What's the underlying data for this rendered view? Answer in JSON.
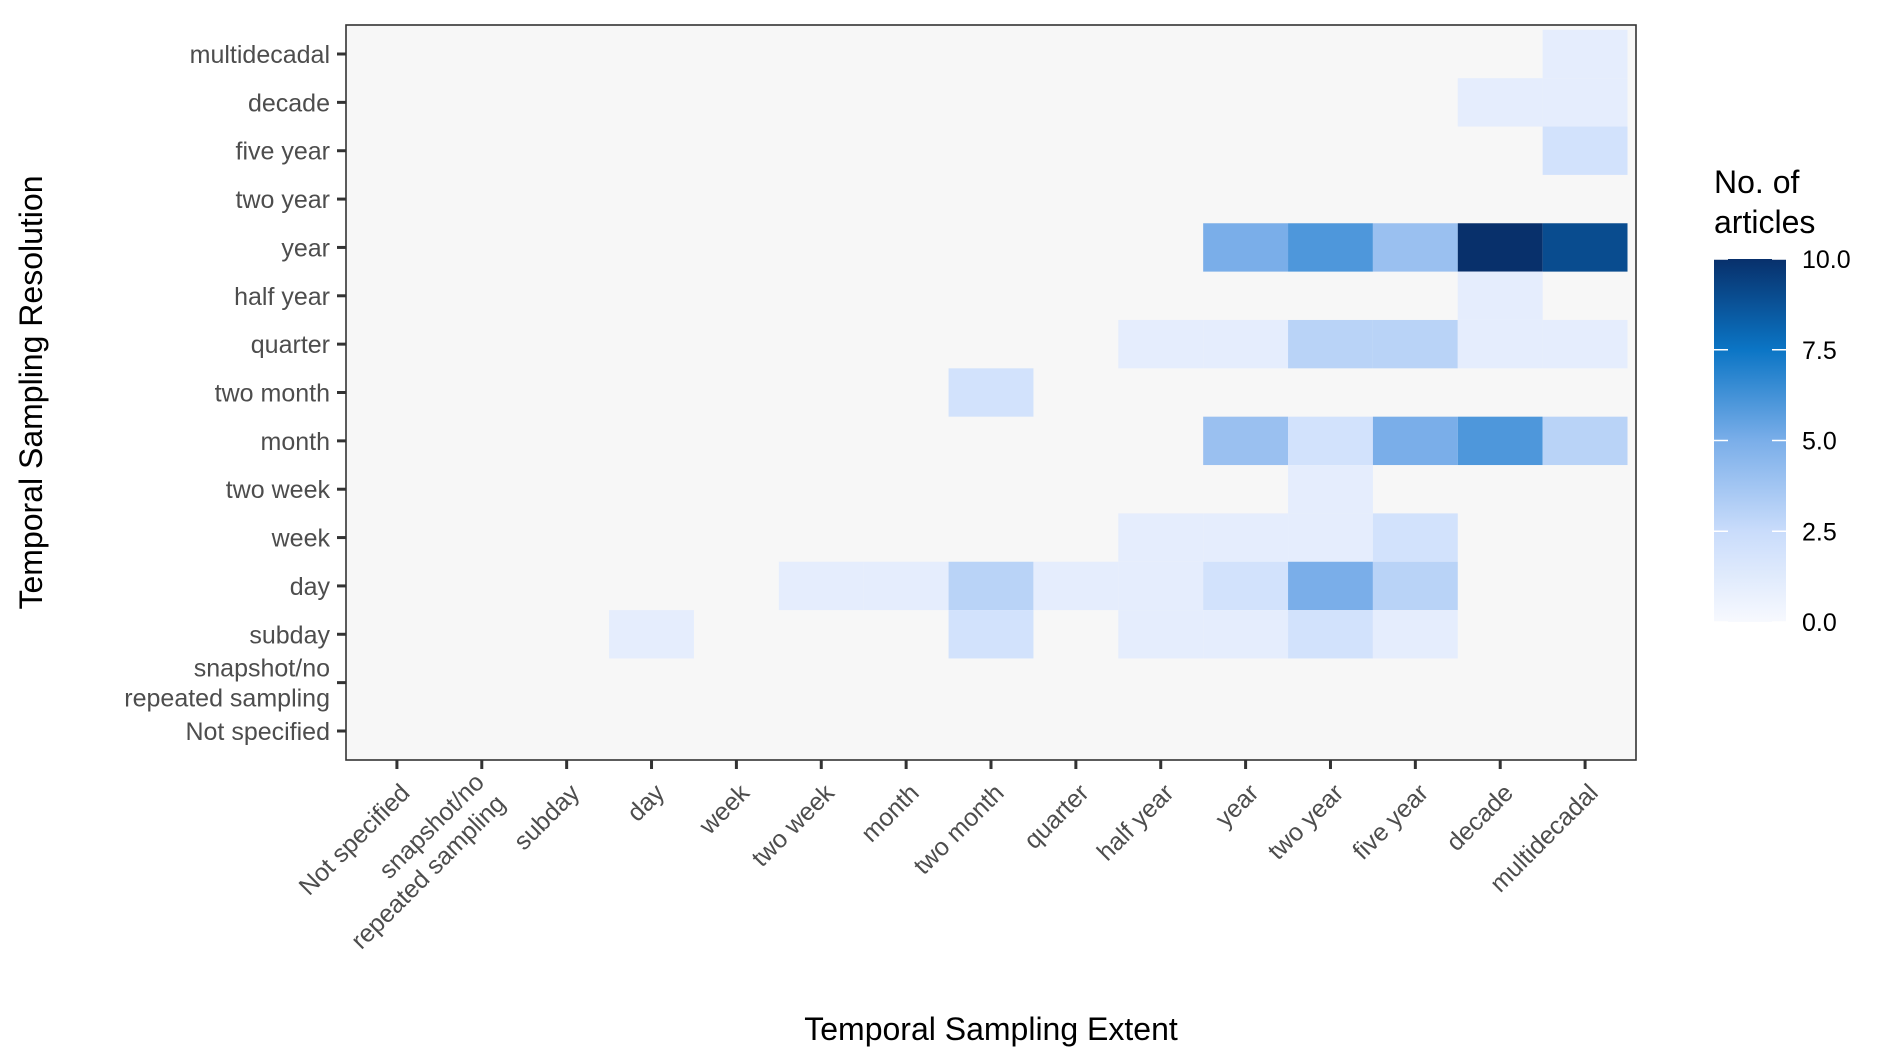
{
  "chart_data": {
    "type": "heatmap",
    "title": "",
    "xlabel": "Temporal Sampling Extent",
    "ylabel": "Temporal Sampling Resolution",
    "x_categories": [
      "Not specified",
      "snapshot/no\nrepeated sampling",
      "subday",
      "day",
      "week",
      "two week",
      "month",
      "two month",
      "quarter",
      "half year",
      "year",
      "two year",
      "five year",
      "decade",
      "multidecadal"
    ],
    "y_categories": [
      "Not specified",
      "snapshot/no\nrepeated sampling",
      "subday",
      "day",
      "week",
      "two week",
      "month",
      "two month",
      "quarter",
      "half year",
      "year",
      "two year",
      "five year",
      "decade",
      "multidecadal"
    ],
    "cells": [
      {
        "x": "multidecadal",
        "y": "multidecadal",
        "value": 1
      },
      {
        "x": "decade",
        "y": "decade",
        "value": 1
      },
      {
        "x": "multidecadal",
        "y": "decade",
        "value": 1
      },
      {
        "x": "multidecadal",
        "y": "five year",
        "value": 2
      },
      {
        "x": "year",
        "y": "year",
        "value": 5
      },
      {
        "x": "two year",
        "y": "year",
        "value": 6
      },
      {
        "x": "five year",
        "y": "year",
        "value": 4
      },
      {
        "x": "decade",
        "y": "year",
        "value": 10
      },
      {
        "x": "multidecadal",
        "y": "year",
        "value": 9
      },
      {
        "x": "decade",
        "y": "half year",
        "value": 1
      },
      {
        "x": "half year",
        "y": "quarter",
        "value": 1
      },
      {
        "x": "year",
        "y": "quarter",
        "value": 1
      },
      {
        "x": "two year",
        "y": "quarter",
        "value": 3
      },
      {
        "x": "five year",
        "y": "quarter",
        "value": 3
      },
      {
        "x": "decade",
        "y": "quarter",
        "value": 1
      },
      {
        "x": "multidecadal",
        "y": "quarter",
        "value": 1
      },
      {
        "x": "two month",
        "y": "two month",
        "value": 2
      },
      {
        "x": "year",
        "y": "month",
        "value": 4
      },
      {
        "x": "two year",
        "y": "month",
        "value": 2
      },
      {
        "x": "five year",
        "y": "month",
        "value": 5
      },
      {
        "x": "decade",
        "y": "month",
        "value": 6
      },
      {
        "x": "multidecadal",
        "y": "month",
        "value": 3
      },
      {
        "x": "two year",
        "y": "two week",
        "value": 1
      },
      {
        "x": "half year",
        "y": "week",
        "value": 1
      },
      {
        "x": "year",
        "y": "week",
        "value": 1
      },
      {
        "x": "two year",
        "y": "week",
        "value": 1
      },
      {
        "x": "five year",
        "y": "week",
        "value": 2
      },
      {
        "x": "two week",
        "y": "day",
        "value": 1
      },
      {
        "x": "month",
        "y": "day",
        "value": 1
      },
      {
        "x": "two month",
        "y": "day",
        "value": 3
      },
      {
        "x": "quarter",
        "y": "day",
        "value": 1
      },
      {
        "x": "half year",
        "y": "day",
        "value": 1
      },
      {
        "x": "year",
        "y": "day",
        "value": 2
      },
      {
        "x": "two year",
        "y": "day",
        "value": 5
      },
      {
        "x": "five year",
        "y": "day",
        "value": 3
      },
      {
        "x": "day",
        "y": "subday",
        "value": 1
      },
      {
        "x": "two month",
        "y": "subday",
        "value": 2
      },
      {
        "x": "half year",
        "y": "subday",
        "value": 1
      },
      {
        "x": "year",
        "y": "subday",
        "value": 1
      },
      {
        "x": "two year",
        "y": "subday",
        "value": 2
      },
      {
        "x": "five year",
        "y": "subday",
        "value": 1
      }
    ],
    "legend": {
      "title": "No. of\narticles",
      "range": [
        0,
        10
      ],
      "ticks": [
        "0.0",
        "2.5",
        "5.0",
        "7.5",
        "10.0"
      ],
      "placement": "right"
    },
    "grid": false,
    "colors": {
      "panel_background": "#f7f7f7",
      "low": "#f7f9fe",
      "high": "#08306b"
    }
  }
}
